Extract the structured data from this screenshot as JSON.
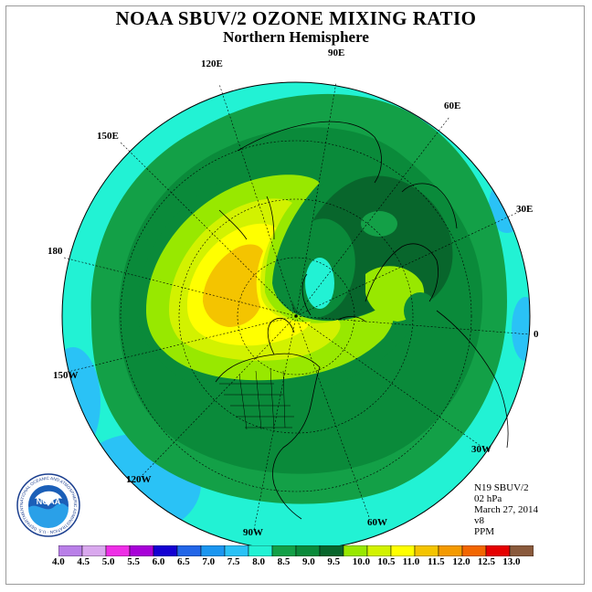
{
  "title": "NOAA SBUV/2 OZONE MIXING RATIO",
  "subtitle": "Northern Hemisphere",
  "longitude_labels": [
    {
      "id": "lon-90e",
      "text": "90E"
    },
    {
      "id": "lon-60e",
      "text": "60E"
    },
    {
      "id": "lon-30e",
      "text": "30E"
    },
    {
      "id": "lon-0",
      "text": "0"
    },
    {
      "id": "lon-30w",
      "text": "30W"
    },
    {
      "id": "lon-60w",
      "text": "60W"
    },
    {
      "id": "lon-90w",
      "text": "90W"
    },
    {
      "id": "lon-120w",
      "text": "120W"
    },
    {
      "id": "lon-150w",
      "text": "150W"
    },
    {
      "id": "lon-180",
      "text": "180"
    },
    {
      "id": "lon-150e",
      "text": "150E"
    },
    {
      "id": "lon-120e",
      "text": "120E"
    }
  ],
  "info": {
    "satellite": "N19 SBUV/2",
    "level": "02 hPa",
    "date": "March 27, 2014",
    "version": "v8",
    "units": "PPM"
  },
  "logo": {
    "text": "NOAA",
    "ring_text": "NATIONAL OCEANIC AND ATMOSPHERIC ADMINISTRATION · U.S. DEPARTMENT OF COMMERCE"
  },
  "colorbar": {
    "labels": [
      "4.0",
      "4.5",
      "5.0",
      "5.5",
      "6.0",
      "6.5",
      "7.0",
      "7.5",
      "8.0",
      "8.5",
      "9.0",
      "9.5",
      "10.0",
      "10.5",
      "11.0",
      "11.5",
      "12.0",
      "12.5",
      "13.0"
    ],
    "colors": [
      "#b97fe8",
      "#d9a8ee",
      "#ee2ee6",
      "#a800d8",
      "#1400d2",
      "#2266e8",
      "#1b96f0",
      "#2ac2f6",
      "#22f2d4",
      "#13a047",
      "#0a8a3a",
      "#08662c",
      "#98e800",
      "#d2f200",
      "#ffff00",
      "#f4c400",
      "#f49a00",
      "#f26600",
      "#e60000",
      "#8a5a3c"
    ]
  },
  "ozone_levels_shown": {
    "outer_band": "7.5-8.0",
    "dark_green_ring": "8.5-9.0",
    "core": "10.5-11.0"
  }
}
